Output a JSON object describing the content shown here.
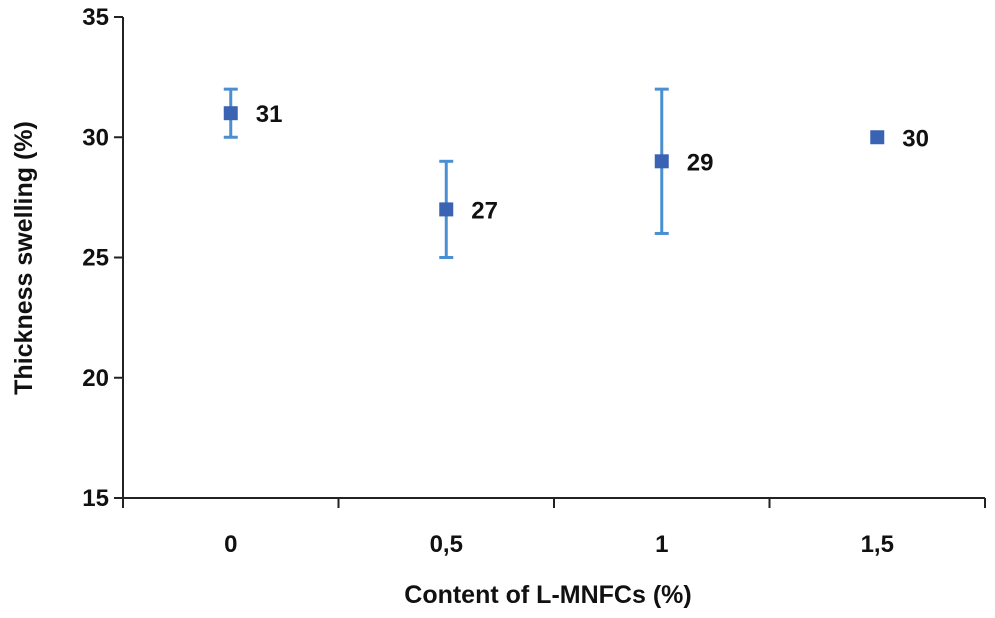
{
  "chart_data": {
    "type": "scatter",
    "title": "",
    "xlabel": "Content of L-MNFCs (%)",
    "ylabel": "Thickness swelling (%)",
    "categories": [
      "0",
      "0,5",
      "1",
      "1,5"
    ],
    "xlim": [
      -0.25,
      1.75
    ],
    "ylim": [
      15,
      35
    ],
    "yticks": [
      "15",
      "20",
      "25",
      "30",
      "35"
    ],
    "legend": "none",
    "grid": false,
    "series": [
      {
        "x": [
          0,
          0.5,
          1,
          1.5
        ],
        "values": [
          31,
          27,
          29,
          30
        ],
        "error_low": [
          1,
          2,
          3,
          0
        ],
        "error_high": [
          1,
          2,
          3,
          0
        ],
        "data_labels": [
          "31",
          "27",
          "29",
          "30"
        ],
        "marker_color": "#3b63b3",
        "errorbar_color": "#4a8fd1"
      }
    ]
  }
}
